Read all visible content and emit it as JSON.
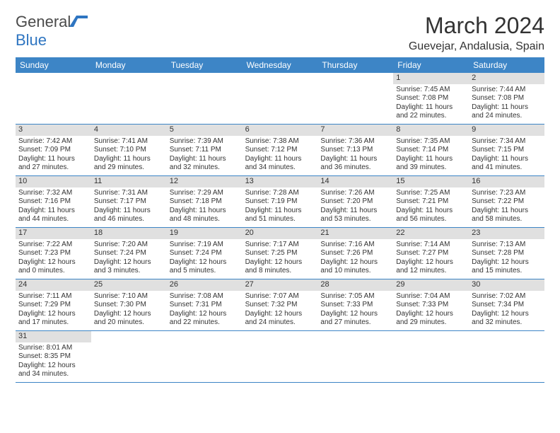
{
  "brand": {
    "word1": "General",
    "word2": "Blue"
  },
  "title": "March 2024",
  "location": "Guevejar, Andalusia, Spain",
  "colors": {
    "header_bg": "#3d85c6",
    "header_text": "#ffffff",
    "daynum_bg": "#e0e0e0",
    "border": "#3d85c6",
    "text": "#333333",
    "brand_gray": "#4a4a4a",
    "brand_blue": "#2e75c1"
  },
  "weekdays": [
    "Sunday",
    "Monday",
    "Tuesday",
    "Wednesday",
    "Thursday",
    "Friday",
    "Saturday"
  ],
  "weeks": [
    [
      {
        "empty": true
      },
      {
        "empty": true
      },
      {
        "empty": true
      },
      {
        "empty": true
      },
      {
        "empty": true
      },
      {
        "n": "1",
        "sr": "Sunrise: 7:45 AM",
        "ss": "Sunset: 7:08 PM",
        "d1": "Daylight: 11 hours",
        "d2": "and 22 minutes."
      },
      {
        "n": "2",
        "sr": "Sunrise: 7:44 AM",
        "ss": "Sunset: 7:08 PM",
        "d1": "Daylight: 11 hours",
        "d2": "and 24 minutes."
      }
    ],
    [
      {
        "n": "3",
        "sr": "Sunrise: 7:42 AM",
        "ss": "Sunset: 7:09 PM",
        "d1": "Daylight: 11 hours",
        "d2": "and 27 minutes."
      },
      {
        "n": "4",
        "sr": "Sunrise: 7:41 AM",
        "ss": "Sunset: 7:10 PM",
        "d1": "Daylight: 11 hours",
        "d2": "and 29 minutes."
      },
      {
        "n": "5",
        "sr": "Sunrise: 7:39 AM",
        "ss": "Sunset: 7:11 PM",
        "d1": "Daylight: 11 hours",
        "d2": "and 32 minutes."
      },
      {
        "n": "6",
        "sr": "Sunrise: 7:38 AM",
        "ss": "Sunset: 7:12 PM",
        "d1": "Daylight: 11 hours",
        "d2": "and 34 minutes."
      },
      {
        "n": "7",
        "sr": "Sunrise: 7:36 AM",
        "ss": "Sunset: 7:13 PM",
        "d1": "Daylight: 11 hours",
        "d2": "and 36 minutes."
      },
      {
        "n": "8",
        "sr": "Sunrise: 7:35 AM",
        "ss": "Sunset: 7:14 PM",
        "d1": "Daylight: 11 hours",
        "d2": "and 39 minutes."
      },
      {
        "n": "9",
        "sr": "Sunrise: 7:34 AM",
        "ss": "Sunset: 7:15 PM",
        "d1": "Daylight: 11 hours",
        "d2": "and 41 minutes."
      }
    ],
    [
      {
        "n": "10",
        "sr": "Sunrise: 7:32 AM",
        "ss": "Sunset: 7:16 PM",
        "d1": "Daylight: 11 hours",
        "d2": "and 44 minutes."
      },
      {
        "n": "11",
        "sr": "Sunrise: 7:31 AM",
        "ss": "Sunset: 7:17 PM",
        "d1": "Daylight: 11 hours",
        "d2": "and 46 minutes."
      },
      {
        "n": "12",
        "sr": "Sunrise: 7:29 AM",
        "ss": "Sunset: 7:18 PM",
        "d1": "Daylight: 11 hours",
        "d2": "and 48 minutes."
      },
      {
        "n": "13",
        "sr": "Sunrise: 7:28 AM",
        "ss": "Sunset: 7:19 PM",
        "d1": "Daylight: 11 hours",
        "d2": "and 51 minutes."
      },
      {
        "n": "14",
        "sr": "Sunrise: 7:26 AM",
        "ss": "Sunset: 7:20 PM",
        "d1": "Daylight: 11 hours",
        "d2": "and 53 minutes."
      },
      {
        "n": "15",
        "sr": "Sunrise: 7:25 AM",
        "ss": "Sunset: 7:21 PM",
        "d1": "Daylight: 11 hours",
        "d2": "and 56 minutes."
      },
      {
        "n": "16",
        "sr": "Sunrise: 7:23 AM",
        "ss": "Sunset: 7:22 PM",
        "d1": "Daylight: 11 hours",
        "d2": "and 58 minutes."
      }
    ],
    [
      {
        "n": "17",
        "sr": "Sunrise: 7:22 AM",
        "ss": "Sunset: 7:23 PM",
        "d1": "Daylight: 12 hours",
        "d2": "and 0 minutes."
      },
      {
        "n": "18",
        "sr": "Sunrise: 7:20 AM",
        "ss": "Sunset: 7:24 PM",
        "d1": "Daylight: 12 hours",
        "d2": "and 3 minutes."
      },
      {
        "n": "19",
        "sr": "Sunrise: 7:19 AM",
        "ss": "Sunset: 7:24 PM",
        "d1": "Daylight: 12 hours",
        "d2": "and 5 minutes."
      },
      {
        "n": "20",
        "sr": "Sunrise: 7:17 AM",
        "ss": "Sunset: 7:25 PM",
        "d1": "Daylight: 12 hours",
        "d2": "and 8 minutes."
      },
      {
        "n": "21",
        "sr": "Sunrise: 7:16 AM",
        "ss": "Sunset: 7:26 PM",
        "d1": "Daylight: 12 hours",
        "d2": "and 10 minutes."
      },
      {
        "n": "22",
        "sr": "Sunrise: 7:14 AM",
        "ss": "Sunset: 7:27 PM",
        "d1": "Daylight: 12 hours",
        "d2": "and 12 minutes."
      },
      {
        "n": "23",
        "sr": "Sunrise: 7:13 AM",
        "ss": "Sunset: 7:28 PM",
        "d1": "Daylight: 12 hours",
        "d2": "and 15 minutes."
      }
    ],
    [
      {
        "n": "24",
        "sr": "Sunrise: 7:11 AM",
        "ss": "Sunset: 7:29 PM",
        "d1": "Daylight: 12 hours",
        "d2": "and 17 minutes."
      },
      {
        "n": "25",
        "sr": "Sunrise: 7:10 AM",
        "ss": "Sunset: 7:30 PM",
        "d1": "Daylight: 12 hours",
        "d2": "and 20 minutes."
      },
      {
        "n": "26",
        "sr": "Sunrise: 7:08 AM",
        "ss": "Sunset: 7:31 PM",
        "d1": "Daylight: 12 hours",
        "d2": "and 22 minutes."
      },
      {
        "n": "27",
        "sr": "Sunrise: 7:07 AM",
        "ss": "Sunset: 7:32 PM",
        "d1": "Daylight: 12 hours",
        "d2": "and 24 minutes."
      },
      {
        "n": "28",
        "sr": "Sunrise: 7:05 AM",
        "ss": "Sunset: 7:33 PM",
        "d1": "Daylight: 12 hours",
        "d2": "and 27 minutes."
      },
      {
        "n": "29",
        "sr": "Sunrise: 7:04 AM",
        "ss": "Sunset: 7:33 PM",
        "d1": "Daylight: 12 hours",
        "d2": "and 29 minutes."
      },
      {
        "n": "30",
        "sr": "Sunrise: 7:02 AM",
        "ss": "Sunset: 7:34 PM",
        "d1": "Daylight: 12 hours",
        "d2": "and 32 minutes."
      }
    ],
    [
      {
        "n": "31",
        "sr": "Sunrise: 8:01 AM",
        "ss": "Sunset: 8:35 PM",
        "d1": "Daylight: 12 hours",
        "d2": "and 34 minutes."
      },
      {
        "empty": true
      },
      {
        "empty": true
      },
      {
        "empty": true
      },
      {
        "empty": true
      },
      {
        "empty": true
      },
      {
        "empty": true
      }
    ]
  ]
}
